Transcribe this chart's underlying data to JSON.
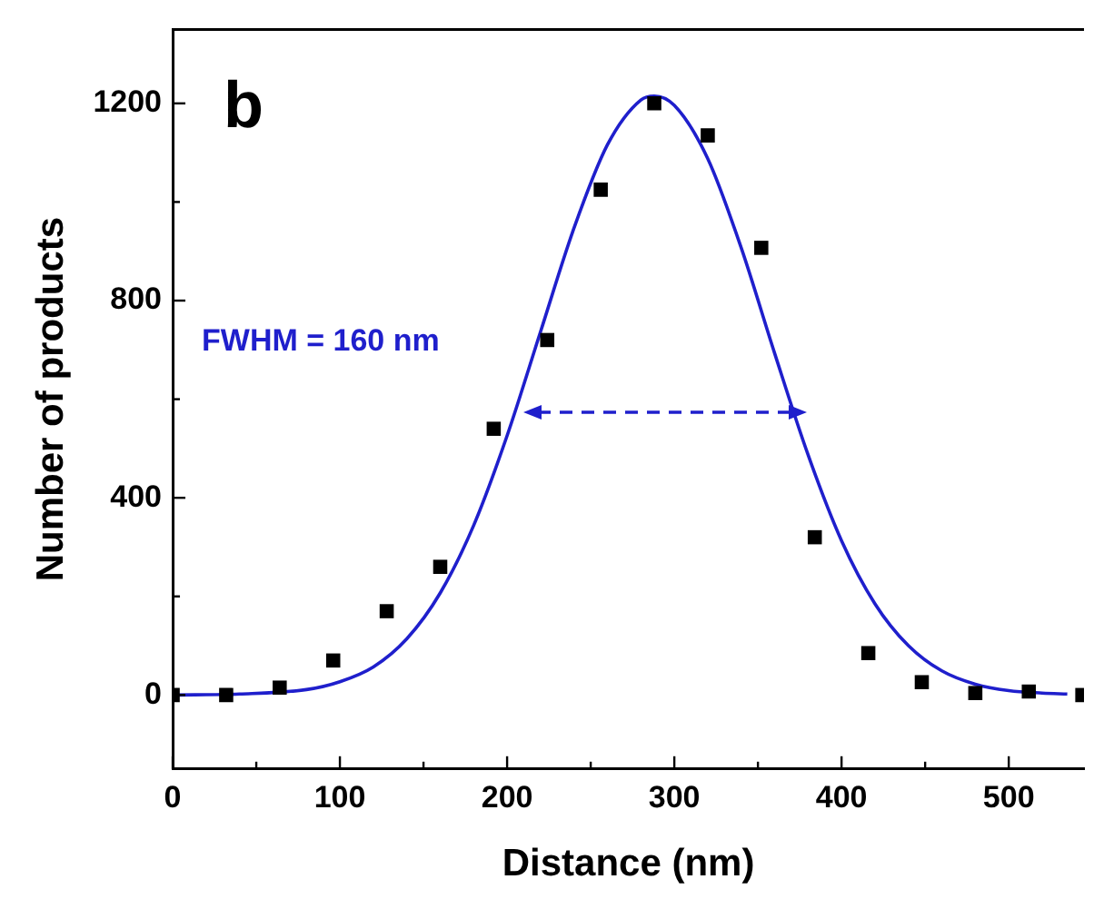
{
  "chart_data": {
    "type": "scatter",
    "xlabel": "Distance (nm)",
    "ylabel": "Number of products",
    "annotations": [
      "b",
      "FWHM = 160 nm"
    ],
    "xlim": [
      0,
      545
    ],
    "ylim": [
      -150,
      1350
    ],
    "xticks": [
      0,
      {
        "value": 50,
        "label": null
      },
      100,
      {
        "value": 150,
        "label": null
      },
      200,
      {
        "value": 250,
        "label": null
      },
      300,
      {
        "value": 350,
        "label": null
      },
      400,
      {
        "value": 450,
        "label": null
      },
      500
    ],
    "yticks": [
      0,
      {
        "value": 200,
        "label": null
      },
      400,
      {
        "value": 600,
        "label": null
      },
      800,
      {
        "value": 1000,
        "label": null
      },
      1200
    ],
    "grid": false,
    "legend": false,
    "marker": "square",
    "series": [
      {
        "type": "scatter",
        "color": "#000000",
        "x": [
          0,
          32,
          64,
          96,
          128,
          160,
          192,
          224,
          256,
          288,
          320,
          352,
          384,
          416,
          448,
          480,
          512,
          544
        ],
        "values": [
          0,
          0,
          15,
          70,
          170,
          260,
          540,
          720,
          1025,
          1200,
          1135,
          907,
          320,
          85,
          26,
          4,
          7,
          0
        ]
      },
      {
        "type": "line",
        "color": "#1f1fcc",
        "marker": "none",
        "x": [
          0,
          40,
          80,
          100,
          120,
          140,
          160,
          180,
          200,
          220,
          240,
          260,
          280,
          288,
          300,
          320,
          340,
          360,
          380,
          400,
          420,
          440,
          460,
          480,
          500,
          520,
          535
        ],
        "values": [
          0,
          2,
          11,
          27,
          57,
          114,
          207,
          344,
          526,
          737,
          947,
          1116,
          1207,
          1215,
          1196,
          1088,
          907,
          693,
          487,
          313,
          185,
          100,
          49,
          22,
          9,
          4,
          2
        ]
      }
    ]
  }
}
